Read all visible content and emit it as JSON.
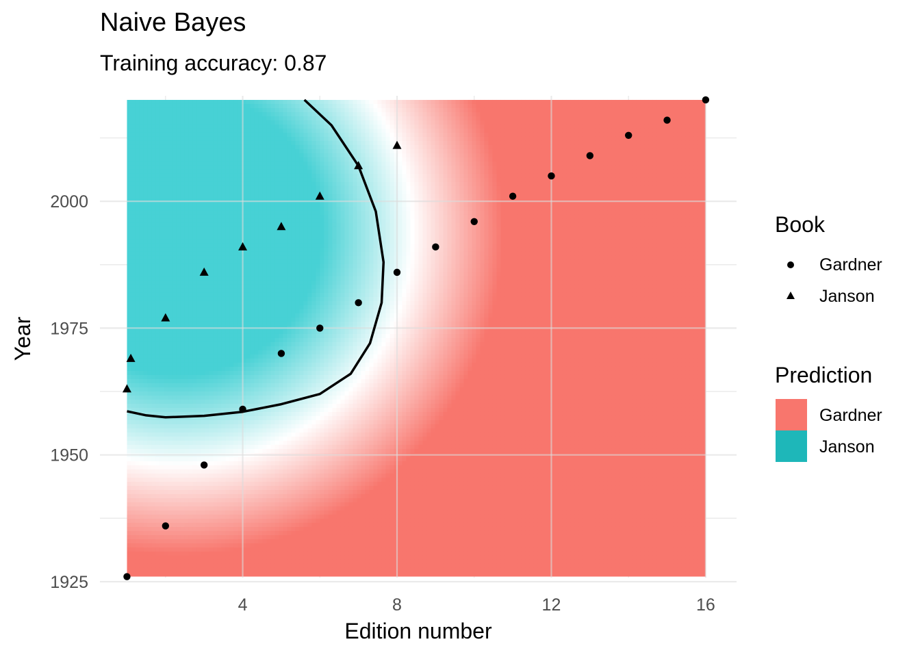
{
  "chart_data": {
    "type": "scatter",
    "title": "Naive Bayes",
    "subtitle": "Training accuracy: 0.87",
    "xlabel": "Edition number",
    "ylabel": "Year",
    "xlim": [
      0.3,
      16.8
    ],
    "ylim": [
      1925.8,
      2020.8
    ],
    "x_ticks": [
      4,
      8,
      12,
      16
    ],
    "y_ticks": [
      1925,
      1950,
      1975,
      2000
    ],
    "grid": true,
    "legend_placement": "right",
    "colors": {
      "Gardner": "#f8766d",
      "Janson": "#00bfc4",
      "mid": "#ffffff",
      "legend_janson": "#1eb7b9"
    },
    "background_region": {
      "x": [
        1,
        16
      ],
      "y": [
        1926,
        2020
      ]
    },
    "series": [
      {
        "name": "Gardner",
        "shape": "circle",
        "x": [
          1,
          2,
          3,
          4,
          5,
          6,
          7,
          8,
          9,
          10,
          11,
          12,
          13,
          14,
          15,
          16
        ],
        "y": [
          1926,
          1936,
          1948,
          1959,
          1970,
          1975,
          1980,
          1986,
          1991,
          1996,
          2001,
          2005,
          2009,
          2013,
          2016,
          2020
        ]
      },
      {
        "name": "Janson",
        "shape": "triangle",
        "x": [
          1,
          1.1,
          2,
          3,
          4,
          5,
          6,
          7,
          8
        ],
        "y": [
          1963,
          1969,
          1977,
          1986,
          1991,
          1995,
          2001,
          2007,
          2011
        ]
      }
    ],
    "decision_boundary": {
      "x": [
        5.6,
        6.3,
        7.0,
        7.45,
        7.65,
        7.6,
        7.3,
        6.8,
        6.0,
        5.0,
        4.0,
        3.0,
        2.0,
        1.5,
        1.0
      ],
      "y": [
        2020,
        2015,
        2007,
        1998,
        1988,
        1980,
        1972,
        1966,
        1962,
        1960,
        1958.5,
        1957.7,
        1957.4,
        1957.8,
        1958.6
      ]
    }
  },
  "legend": {
    "book_title": "Book",
    "book_items": [
      "Gardner",
      "Janson"
    ],
    "prediction_title": "Prediction",
    "prediction_items": [
      "Gardner",
      "Janson"
    ]
  }
}
